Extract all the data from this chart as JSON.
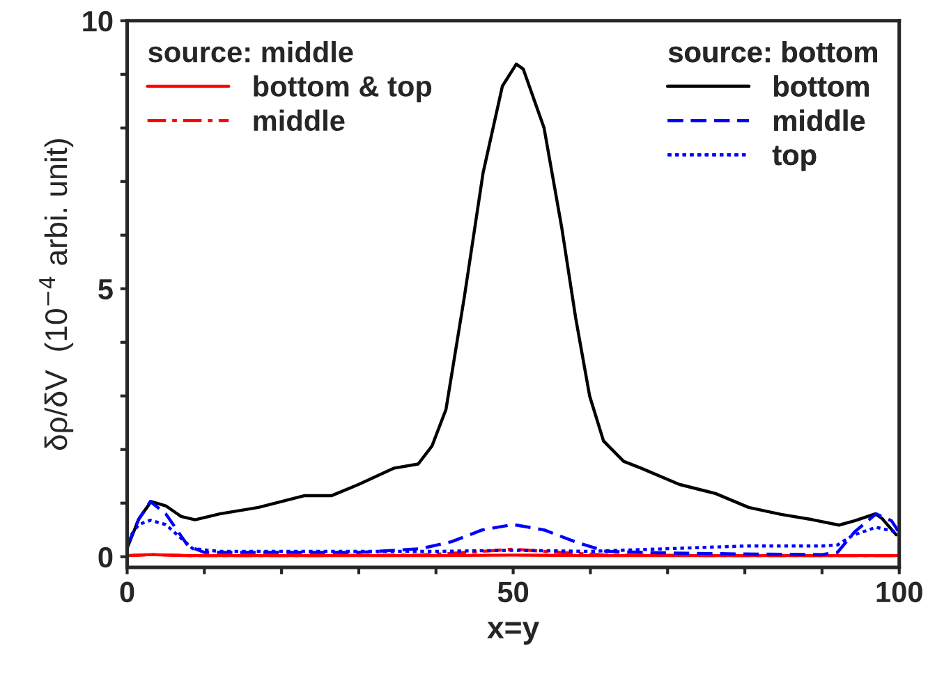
{
  "chart_data": {
    "type": "line",
    "xlabel": "x=y",
    "ylabel": "δρ/δV  (10$^{−4}$ arbi. unit)",
    "annotations": [
      "source: middle",
      "source: bottom"
    ],
    "legend": "top",
    "grid": false,
    "xlim": [
      0,
      100
    ],
    "ylim": [
      -0.2,
      10
    ],
    "xticks": [
      0,
      {
        "value": 10,
        "label": null
      },
      {
        "value": 20,
        "label": null
      },
      {
        "value": 30,
        "label": null
      },
      {
        "value": 40,
        "label": null
      },
      50,
      {
        "value": 60,
        "label": null
      },
      {
        "value": 70,
        "label": null
      },
      {
        "value": 80,
        "label": null
      },
      {
        "value": 90,
        "label": null
      },
      100
    ],
    "yticks": [
      0,
      {
        "value": 1,
        "label": null
      },
      {
        "value": 2,
        "label": null
      },
      {
        "value": 3,
        "label": null
      },
      {
        "value": 4,
        "label": null
      },
      5,
      {
        "value": 6,
        "label": null
      },
      {
        "value": 7,
        "label": null
      },
      {
        "value": 8,
        "label": null
      },
      {
        "value": 9,
        "label": null
      },
      10
    ],
    "series": [
      {
        "name": "bottom & top",
        "color": "#ff0000",
        "line_style": "solid",
        "x": [
          0,
          3,
          8,
          20,
          40,
          50,
          60,
          80,
          95,
          100
        ],
        "values": [
          0.02,
          0.04,
          0.02,
          0.02,
          0.02,
          0.03,
          0.02,
          0.02,
          0.02,
          0.02
        ]
      },
      {
        "name": "middle",
        "color": "#ff0000",
        "line_style": "dashdot",
        "x": [
          0,
          3,
          8,
          20,
          38,
          44,
          50,
          56,
          62,
          80,
          95,
          100
        ],
        "values": [
          0.02,
          0.04,
          0.02,
          0.02,
          0.03,
          0.08,
          0.14,
          0.08,
          0.03,
          0.02,
          0.02,
          0.02
        ]
      },
      {
        "name": "bottom",
        "color": "#000000",
        "line_style": "solid",
        "x": [
          0,
          1.5,
          3.1,
          5,
          7,
          8.8,
          12,
          17,
          23,
          26.5,
          30,
          34.5,
          37.7,
          39.5,
          41.3,
          43.7,
          46.1,
          48.6,
          50.4,
          51.3,
          54,
          56.3,
          58.1,
          59.9,
          61.7,
          64.3,
          66.6,
          71.5,
          76.2,
          80.5,
          84.7,
          88.8,
          92.2,
          94.2,
          96.9,
          97.8,
          99.6
        ],
        "values": [
          0.16,
          0.7,
          1.03,
          0.95,
          0.75,
          0.69,
          0.8,
          0.92,
          1.14,
          1.14,
          1.35,
          1.65,
          1.73,
          2.07,
          2.75,
          4.87,
          7.16,
          8.78,
          9.19,
          9.1,
          8.0,
          6.13,
          4.45,
          3.0,
          2.16,
          1.78,
          1.65,
          1.35,
          1.18,
          0.92,
          0.79,
          0.69,
          0.59,
          0.67,
          0.8,
          0.71,
          0.41
        ]
      },
      {
        "name": "middle",
        "color": "#0000ff",
        "line_style": "dashed",
        "x": [
          0,
          1.5,
          3,
          5,
          7.9,
          10,
          20,
          30,
          38,
          42,
          46,
          50,
          54,
          58,
          62,
          70,
          80,
          90,
          92,
          94.2,
          97,
          99,
          100
        ],
        "values": [
          0.2,
          0.7,
          1.03,
          0.8,
          0.2,
          0.08,
          0.08,
          0.08,
          0.15,
          0.28,
          0.5,
          0.6,
          0.5,
          0.28,
          0.1,
          0.07,
          0.05,
          0.04,
          0.08,
          0.46,
          0.8,
          0.67,
          0.45
        ]
      },
      {
        "name": "top",
        "color": "#0000ff",
        "line_style": "dotted",
        "x": [
          0,
          1.5,
          3,
          5,
          8.5,
          12,
          20,
          30,
          40,
          50,
          60,
          70,
          80,
          90,
          92,
          94,
          97,
          100
        ],
        "values": [
          0.3,
          0.6,
          0.68,
          0.6,
          0.15,
          0.1,
          0.1,
          0.1,
          0.1,
          0.12,
          0.1,
          0.15,
          0.2,
          0.2,
          0.22,
          0.4,
          0.55,
          0.45
        ]
      }
    ]
  }
}
